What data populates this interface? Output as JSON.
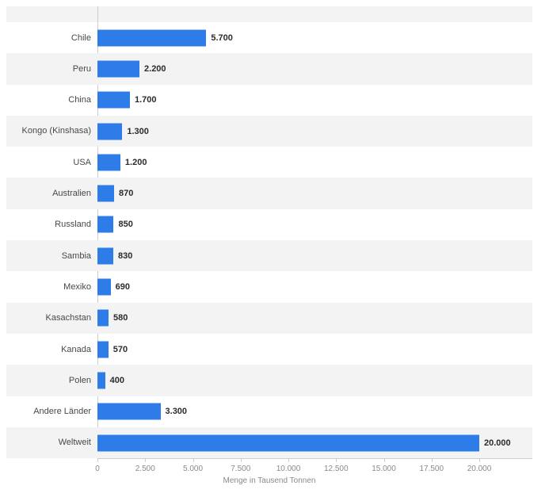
{
  "chart_data": {
    "type": "bar",
    "orientation": "horizontal",
    "title": "",
    "xlabel": "Menge in Tausend Tonnen",
    "ylabel": "",
    "categories": [
      "Chile",
      "Peru",
      "China",
      "Kongo (Kinshasa)",
      "USA",
      "Australien",
      "Russland",
      "Sambia",
      "Mexiko",
      "Kasachstan",
      "Kanada",
      "Polen",
      "Andere Länder",
      "Weltweit"
    ],
    "values": [
      5700,
      2200,
      1700,
      1300,
      1200,
      870,
      850,
      830,
      690,
      580,
      570,
      400,
      3300,
      20000
    ],
    "value_labels": [
      "5.700",
      "2.200",
      "1.700",
      "1.300",
      "1.200",
      "870",
      "850",
      "830",
      "690",
      "580",
      "570",
      "400",
      "3.300",
      "20.000"
    ],
    "xlim": [
      0,
      20000
    ],
    "xticks": [
      0,
      2500,
      5000,
      7500,
      10000,
      12500,
      15000,
      17500,
      20000
    ],
    "xtick_labels": [
      "0",
      "2.500",
      "5.000",
      "7.500",
      "10.000",
      "12.500",
      "15.000",
      "17.500",
      "20.000"
    ],
    "grid": false,
    "legend": false,
    "colors": {
      "bar": "#2d7ce8",
      "stripe": "#f3f3f3",
      "axis": "#cccccc"
    }
  }
}
